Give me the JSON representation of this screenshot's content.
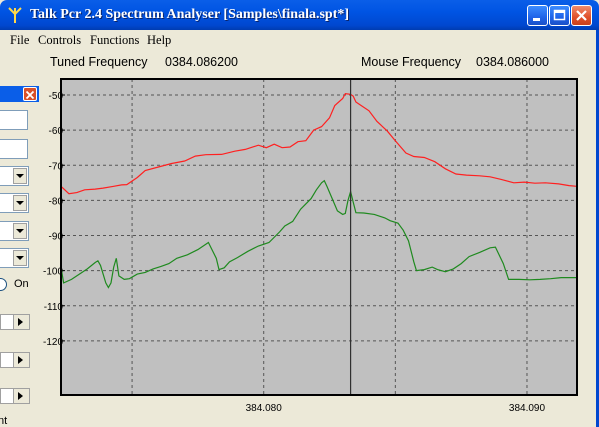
{
  "window": {
    "title": "Talk Pcr 2.4 Spectrum Analyser [Samples\\finala.spt*]"
  },
  "menu": [
    "File",
    "Controls",
    "Functions",
    "Help"
  ],
  "readouts": {
    "tuned_label": "Tuned Frequency",
    "tuned_value": "0384.086200",
    "mouse_label": "Mouse Frequency",
    "mouse_value": "0384.086000"
  },
  "side_panel": {
    "radio_label": "On",
    "partial_text": "nt"
  },
  "chart_data": {
    "type": "line",
    "x_unit": "MHz",
    "xlim": [
      384.0723,
      384.0919
    ],
    "ylim": [
      -50,
      -130
    ],
    "y_ticks": [
      -50,
      -60,
      -70,
      -80,
      -90,
      -100,
      -110,
      -120
    ],
    "y_tick_labels": [
      "-50",
      "-60",
      "-70",
      "-80",
      "-90",
      "-100",
      "-110",
      "-120"
    ],
    "x_ticks": [
      384.08,
      384.09
    ],
    "x_tick_labels": [
      "384.080",
      "384.090"
    ],
    "grid": true,
    "cursor_x": 384.0833,
    "background": "#c0c0c0",
    "series": [
      {
        "color": "#ff2020",
        "points": [
          [
            384.0723,
            -76.0
          ],
          [
            384.0726,
            -78.1
          ],
          [
            384.0729,
            -77.8
          ],
          [
            384.0732,
            -77.0
          ],
          [
            384.0736,
            -76.8
          ],
          [
            384.0739,
            -76.5
          ],
          [
            384.0743,
            -76.0
          ],
          [
            384.0746,
            -75.6
          ],
          [
            384.0748,
            -75.5
          ],
          [
            384.0752,
            -73.5
          ],
          [
            384.0755,
            -71.5
          ],
          [
            384.076,
            -70.5
          ],
          [
            384.0765,
            -69.5
          ],
          [
            384.077,
            -68.8
          ],
          [
            384.0774,
            -67.4
          ],
          [
            384.0778,
            -67.0
          ],
          [
            384.0784,
            -66.9
          ],
          [
            384.0789,
            -66.0
          ],
          [
            384.0793,
            -65.5
          ],
          [
            384.0798,
            -64.3
          ],
          [
            384.0801,
            -65.0
          ],
          [
            384.0804,
            -64.0
          ],
          [
            384.0807,
            -65.0
          ],
          [
            384.081,
            -64.8
          ],
          [
            384.0813,
            -63.3
          ],
          [
            384.0816,
            -63.0
          ],
          [
            384.0819,
            -60.0
          ],
          [
            384.0822,
            -59.0
          ],
          [
            384.0825,
            -56.5
          ],
          [
            384.0827,
            -53.0
          ],
          [
            384.083,
            -51.0
          ],
          [
            384.0831,
            -49.6
          ],
          [
            384.0833,
            -49.8
          ],
          [
            384.0834,
            -50.3
          ],
          [
            384.0835,
            -52.0
          ],
          [
            384.0837,
            -53.0
          ],
          [
            384.084,
            -54.5
          ],
          [
            384.0843,
            -57.5
          ],
          [
            384.0847,
            -60.3
          ],
          [
            384.085,
            -63.0
          ],
          [
            384.0854,
            -66.5
          ],
          [
            384.0857,
            -67.5
          ],
          [
            384.0861,
            -67.8
          ],
          [
            384.0865,
            -69.0
          ],
          [
            384.0869,
            -71.0
          ],
          [
            384.0873,
            -72.5
          ],
          [
            384.0877,
            -72.8
          ],
          [
            384.0882,
            -73.0
          ],
          [
            384.0886,
            -73.3
          ],
          [
            384.089,
            -74.0
          ],
          [
            384.0895,
            -75.0
          ],
          [
            384.0899,
            -74.8
          ],
          [
            384.0903,
            -75.1
          ],
          [
            384.0907,
            -75.0
          ],
          [
            384.0912,
            -75.3
          ],
          [
            384.0916,
            -75.8
          ],
          [
            384.0919,
            -76.0
          ]
        ]
      },
      {
        "color": "#1f8a1f",
        "points": [
          [
            384.0723,
            -99.0
          ],
          [
            384.0724,
            -103.5
          ],
          [
            384.0727,
            -102.5
          ],
          [
            384.073,
            -101.0
          ],
          [
            384.0733,
            -99.5
          ],
          [
            384.0736,
            -97.7
          ],
          [
            384.0737,
            -97.2
          ],
          [
            384.0738,
            -98.5
          ],
          [
            384.074,
            -103.5
          ],
          [
            384.0741,
            -104.8
          ],
          [
            384.0742,
            -103.5
          ],
          [
            384.0743,
            -99.0
          ],
          [
            384.0744,
            -96.5
          ],
          [
            384.0745,
            -101.5
          ],
          [
            384.0747,
            -102.5
          ],
          [
            384.0749,
            -102.3
          ],
          [
            384.0752,
            -101.0
          ],
          [
            384.0755,
            -100.5
          ],
          [
            384.0758,
            -99.5
          ],
          [
            384.0761,
            -98.8
          ],
          [
            384.0764,
            -98.0
          ],
          [
            384.0767,
            -96.5
          ],
          [
            384.0771,
            -95.5
          ],
          [
            384.0775,
            -94.0
          ],
          [
            384.0779,
            -92.0
          ],
          [
            384.0782,
            -96.5
          ],
          [
            384.0783,
            -99.7
          ],
          [
            384.0785,
            -99.2
          ],
          [
            384.0787,
            -97.5
          ],
          [
            384.079,
            -96.3
          ],
          [
            384.0794,
            -94.5
          ],
          [
            384.0798,
            -93.0
          ],
          [
            384.0802,
            -92.0
          ],
          [
            384.0806,
            -89.0
          ],
          [
            384.0808,
            -87.3
          ],
          [
            384.0811,
            -86.0
          ],
          [
            384.0814,
            -82.5
          ],
          [
            384.0818,
            -79.5
          ],
          [
            384.082,
            -77.0
          ],
          [
            384.0822,
            -75.0
          ],
          [
            384.0823,
            -74.4
          ],
          [
            384.0824,
            -76.0
          ],
          [
            384.0826,
            -79.5
          ],
          [
            384.0828,
            -83.0
          ],
          [
            384.083,
            -84.0
          ],
          [
            384.0831,
            -83.7
          ],
          [
            384.0832,
            -80.0
          ],
          [
            384.0833,
            -77.5
          ],
          [
            384.0834,
            -80.5
          ],
          [
            384.0835,
            -83.5
          ],
          [
            384.0838,
            -83.6
          ],
          [
            384.0842,
            -84.0
          ],
          [
            384.0846,
            -85.0
          ],
          [
            384.0848,
            -85.8
          ],
          [
            384.0851,
            -86.5
          ],
          [
            384.0853,
            -88.5
          ],
          [
            384.0855,
            -91.5
          ],
          [
            384.0857,
            -97.5
          ],
          [
            384.0858,
            -100.0
          ],
          [
            384.0861,
            -99.7
          ],
          [
            384.0864,
            -99.0
          ],
          [
            384.0866,
            -99.7
          ],
          [
            384.0869,
            -100.3
          ],
          [
            384.0872,
            -99.5
          ],
          [
            384.0875,
            -98.0
          ],
          [
            384.0878,
            -96.0
          ],
          [
            384.0882,
            -94.8
          ],
          [
            384.0886,
            -93.5
          ],
          [
            384.0888,
            -93.3
          ],
          [
            384.0891,
            -98.0
          ],
          [
            384.0893,
            -102.5
          ],
          [
            384.0897,
            -102.5
          ],
          [
            384.0901,
            -102.6
          ],
          [
            384.0905,
            -102.5
          ],
          [
            384.0909,
            -102.3
          ],
          [
            384.0913,
            -102.0
          ],
          [
            384.0919,
            -102.0
          ]
        ]
      }
    ]
  }
}
